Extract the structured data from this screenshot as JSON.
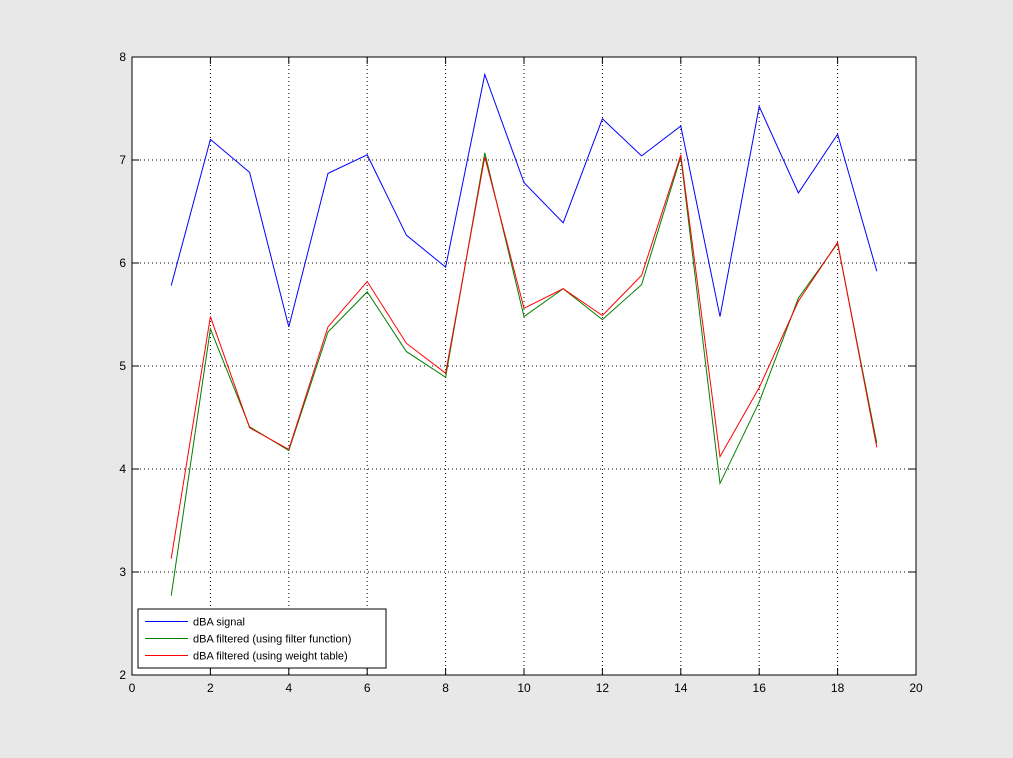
{
  "chart_data": {
    "type": "line",
    "x": [
      1,
      2,
      3,
      4,
      5,
      6,
      7,
      8,
      9,
      10,
      11,
      12,
      13,
      14,
      15,
      16,
      17,
      18,
      19
    ],
    "series": [
      {
        "name": "dBA signal",
        "color": "#0000ff",
        "values": [
          5.78,
          7.2,
          6.88,
          5.38,
          6.87,
          7.05,
          6.27,
          5.96,
          7.83,
          6.78,
          6.39,
          7.4,
          7.04,
          7.33,
          5.48,
          7.52,
          6.68,
          7.25,
          5.92
        ]
      },
      {
        "name": "dBA filtered (using filter function)",
        "color": "#008000",
        "values": [
          2.77,
          5.36,
          4.41,
          4.18,
          5.33,
          5.72,
          5.14,
          4.89,
          7.07,
          5.48,
          5.75,
          5.45,
          5.79,
          7.03,
          3.86,
          4.65,
          5.66,
          6.19,
          4.25
        ]
      },
      {
        "name": "dBA filtered (using weight table)",
        "color": "#ff0000",
        "values": [
          3.13,
          5.48,
          4.4,
          4.19,
          5.38,
          5.82,
          5.22,
          4.93,
          7.03,
          5.56,
          5.75,
          5.49,
          5.88,
          7.05,
          4.12,
          4.79,
          5.63,
          6.2,
          4.21
        ]
      }
    ],
    "title": "",
    "xlabel": "",
    "ylabel": "",
    "xlim": [
      0,
      20
    ],
    "ylim": [
      2,
      8
    ],
    "xticks": [
      0,
      2,
      4,
      6,
      8,
      10,
      12,
      14,
      16,
      18,
      20
    ],
    "yticks": [
      2,
      3,
      4,
      5,
      6,
      7,
      8
    ],
    "grid": true,
    "grid_style": "dotted",
    "legend_position": "bottom-left",
    "background_color": "#e8e8e8",
    "axes_color": "#ffffff"
  }
}
